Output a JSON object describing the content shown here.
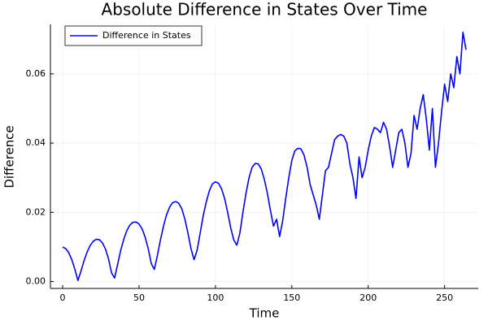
{
  "chart_data": {
    "type": "line",
    "title": "Absolute Difference in States Over Time",
    "xlabel": "Time",
    "ylabel": "Difference",
    "x": [
      0,
      2,
      4,
      6,
      8,
      10,
      12,
      14,
      16,
      18,
      20,
      22,
      24,
      26,
      28,
      30,
      32,
      34,
      36,
      38,
      40,
      42,
      44,
      46,
      48,
      50,
      52,
      54,
      56,
      58,
      60,
      62,
      64,
      66,
      68,
      70,
      72,
      74,
      76,
      78,
      80,
      82,
      84,
      86,
      88,
      90,
      92,
      94,
      96,
      98,
      100,
      102,
      104,
      106,
      108,
      110,
      112,
      114,
      116,
      118,
      120,
      122,
      124,
      126,
      128,
      130,
      132,
      134,
      136,
      138,
      140,
      142,
      144,
      146,
      148,
      150,
      152,
      154,
      156,
      158,
      160,
      162,
      164,
      166,
      168,
      170,
      172,
      174,
      176,
      178,
      180,
      182,
      184,
      186,
      188,
      190,
      192,
      194,
      196,
      198,
      200,
      202,
      204,
      206,
      208,
      210,
      212,
      214,
      216,
      218,
      220,
      222,
      224,
      226,
      228,
      230,
      232,
      234,
      236,
      238,
      240,
      242,
      244,
      246,
      248,
      250,
      252,
      254,
      256,
      258,
      260,
      262,
      264
    ],
    "series": [
      {
        "name": "Difference in States",
        "color": "#0000ff",
        "values": [
          0.01,
          0.0095,
          0.0083,
          0.0063,
          0.0035,
          0.0003,
          0.003,
          0.006,
          0.0085,
          0.0104,
          0.0116,
          0.0122,
          0.0121,
          0.0112,
          0.0094,
          0.0066,
          0.0025,
          0.001,
          0.005,
          0.009,
          0.0122,
          0.0147,
          0.0163,
          0.0171,
          0.0172,
          0.0166,
          0.0152,
          0.0128,
          0.0095,
          0.0052,
          0.0035,
          0.0075,
          0.012,
          0.016,
          0.0193,
          0.0215,
          0.0228,
          0.0231,
          0.0226,
          0.021,
          0.018,
          0.014,
          0.0095,
          0.0063,
          0.009,
          0.014,
          0.019,
          0.023,
          0.0262,
          0.0282,
          0.0288,
          0.0284,
          0.0268,
          0.024,
          0.02,
          0.0155,
          0.012,
          0.0105,
          0.014,
          0.02,
          0.0255,
          0.03,
          0.033,
          0.0341,
          0.034,
          0.0325,
          0.0295,
          0.0255,
          0.0205,
          0.016,
          0.018,
          0.013,
          0.0175,
          0.024,
          0.03,
          0.035,
          0.0378,
          0.0385,
          0.0383,
          0.0365,
          0.033,
          0.028,
          0.025,
          0.022,
          0.018,
          0.025,
          0.032,
          0.033,
          0.037,
          0.041,
          0.042,
          0.0425,
          0.042,
          0.04,
          0.034,
          0.03,
          0.024,
          0.036,
          0.03,
          0.033,
          0.038,
          0.042,
          0.0445,
          0.044,
          0.043,
          0.046,
          0.044,
          0.039,
          0.033,
          0.038,
          0.043,
          0.044,
          0.04,
          0.033,
          0.037,
          0.048,
          0.044,
          0.05,
          0.054,
          0.047,
          0.038,
          0.05,
          0.033,
          0.04,
          0.049,
          0.057,
          0.052,
          0.06,
          0.056,
          0.065,
          0.06,
          0.072,
          0.067
        ]
      }
    ],
    "xlim": [
      -8,
      272
    ],
    "ylim": [
      -0.002,
      0.0743
    ],
    "xticks": [
      0,
      50,
      100,
      150,
      200,
      250
    ],
    "yticks": [
      {
        "value": 0,
        "label": "0.00"
      },
      {
        "value": 0.02,
        "label": "0.02"
      },
      {
        "value": 0.04,
        "label": "0.04"
      },
      {
        "value": 0.06,
        "label": "0.06"
      }
    ],
    "grid": true,
    "legend": "top-left"
  }
}
